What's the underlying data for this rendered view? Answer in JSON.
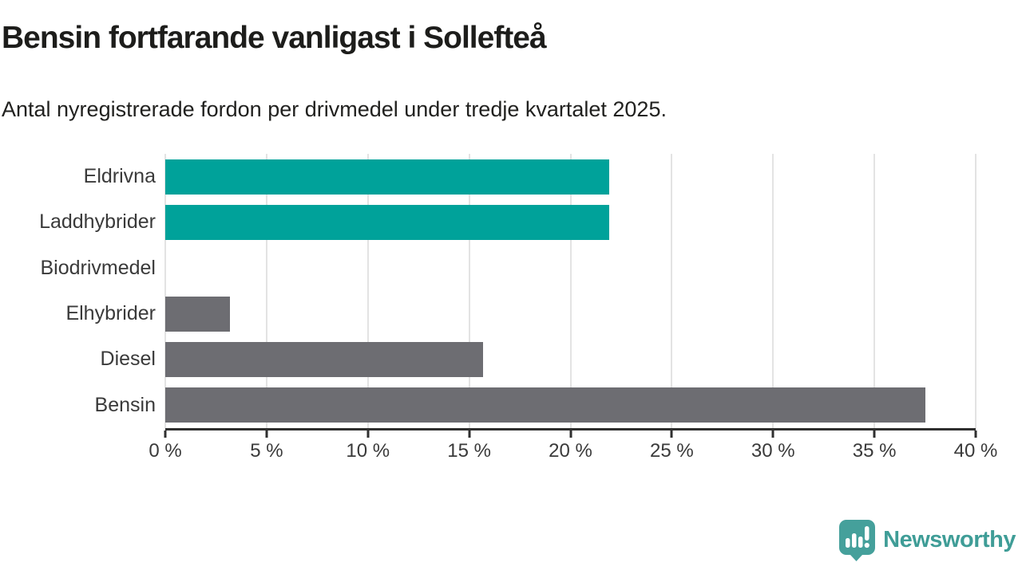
{
  "chart_data": {
    "type": "bar",
    "orientation": "horizontal",
    "title": "Bensin fortfarande vanligast i Sollefteå",
    "subtitle": "Antal nyregistrerade fordon per drivmedel under tredje kvartalet 2025.",
    "categories": [
      "Eldrivna",
      "Laddhybrider",
      "Biodrivmedel",
      "Elhybrider",
      "Diesel",
      "Bensin"
    ],
    "values": [
      21.9,
      21.9,
      0,
      3.2,
      15.7,
      37.5
    ],
    "bar_colors": [
      "#00a29a",
      "#00a29a",
      "#00a29a",
      "#6d6d72",
      "#6d6d72",
      "#6d6d72"
    ],
    "xlabel": "",
    "ylabel": "",
    "xlim": [
      0,
      40
    ],
    "x_ticks": [
      0,
      5,
      10,
      15,
      20,
      25,
      30,
      35,
      40
    ],
    "x_tick_labels": [
      "0 %",
      "5 %",
      "10 %",
      "15 %",
      "20 %",
      "25 %",
      "30 %",
      "35 %",
      "40 %"
    ],
    "grid": "vertical-gridlines-only",
    "legend": "none",
    "accent_color": "#00a29a",
    "muted_bar_color": "#6d6d72",
    "gridline_color": "#e3e3e3",
    "axis_color": "#2f2f2f",
    "tick_label_color": "#3a3a3a"
  },
  "branding": {
    "logo_text": "Newsworthy",
    "logo_color": "#3f9d97",
    "logo_icon": "newsworthy-chart-speech-bubble-icon"
  }
}
